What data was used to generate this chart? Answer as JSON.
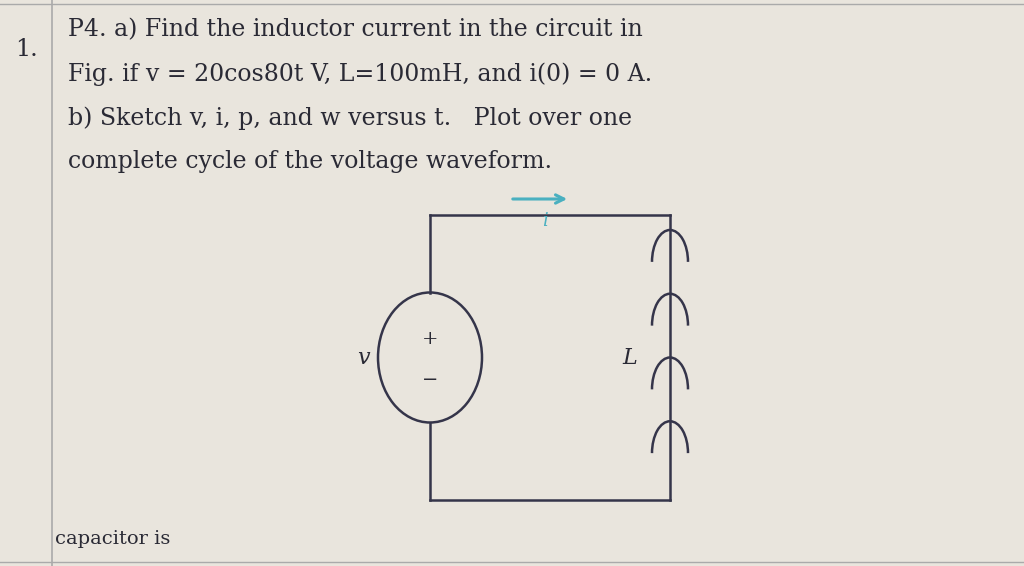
{
  "bg_color": "#e9e5dd",
  "text_color": "#2a2a35",
  "circuit_line_color": "#35354a",
  "arrow_color": "#4ab0c0",
  "label_color": "#4ab0c0",
  "border_color": "#aaaaaa",
  "number_label": "1.",
  "line1": "P4. a) Find the inductor current in the circuit in",
  "line2": "Fig. if v = 20cos80t V, L=100mH, and i(0) = 0 A.",
  "line3": "b) Sketch v, i, p, and w versus t.   Plot over one",
  "line4": "complete cycle of the voltage waveform.",
  "bottom_text": "capacitor is",
  "v_label": "v",
  "plus_label": "+",
  "minus_label": "−",
  "i_label": "i",
  "L_label": "L",
  "fontsize_text": 17,
  "fontsize_number": 17
}
